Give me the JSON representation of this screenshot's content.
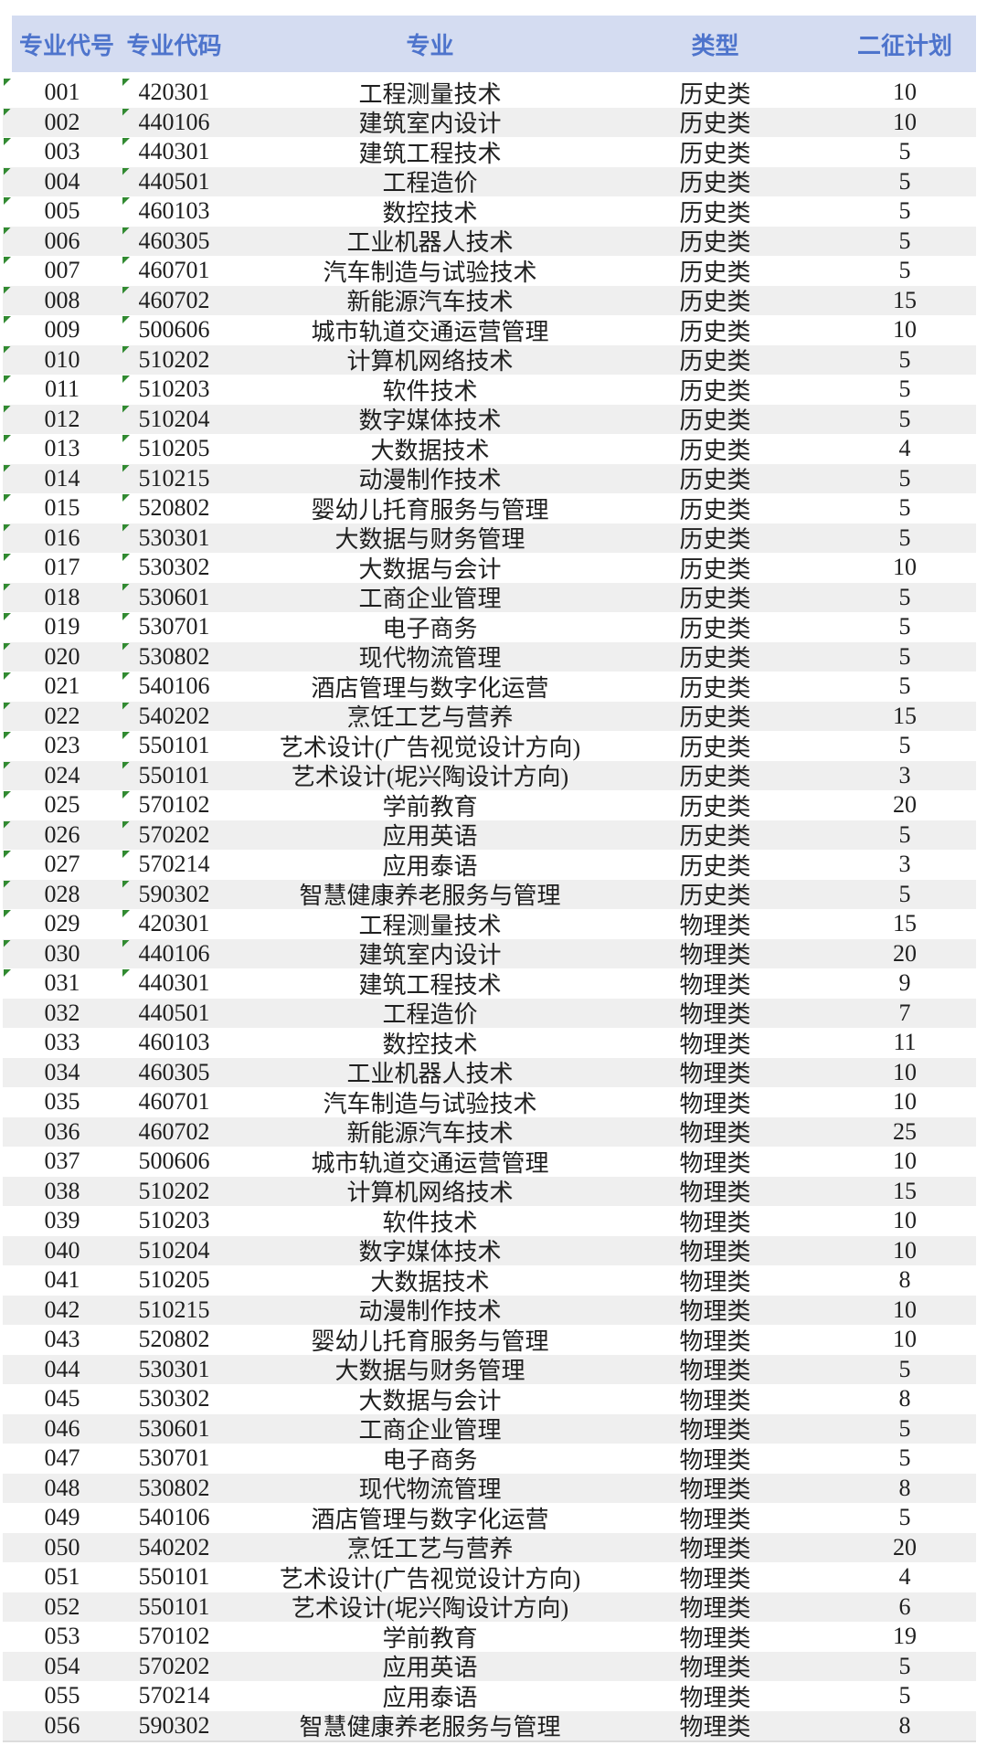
{
  "table": {
    "headers": [
      "专业代号",
      "专业代码",
      "专业",
      "类型",
      "二征计划"
    ],
    "header_bg": "#d4dcf1",
    "header_text_color": "#4e74cc",
    "zebra_row_color": "#efefef",
    "error_indicator_color": "#318a31",
    "rows": [
      {
        "code": "001",
        "major_code": "420301",
        "major": "工程测量技术",
        "type": "历史类",
        "plan": "10",
        "flagged": true
      },
      {
        "code": "002",
        "major_code": "440106",
        "major": "建筑室内设计",
        "type": "历史类",
        "plan": "10",
        "flagged": true
      },
      {
        "code": "003",
        "major_code": "440301",
        "major": "建筑工程技术",
        "type": "历史类",
        "plan": "5",
        "flagged": true
      },
      {
        "code": "004",
        "major_code": "440501",
        "major": "工程造价",
        "type": "历史类",
        "plan": "5",
        "flagged": true
      },
      {
        "code": "005",
        "major_code": "460103",
        "major": "数控技术",
        "type": "历史类",
        "plan": "5",
        "flagged": true
      },
      {
        "code": "006",
        "major_code": "460305",
        "major": "工业机器人技术",
        "type": "历史类",
        "plan": "5",
        "flagged": true
      },
      {
        "code": "007",
        "major_code": "460701",
        "major": "汽车制造与试验技术",
        "type": "历史类",
        "plan": "5",
        "flagged": true
      },
      {
        "code": "008",
        "major_code": "460702",
        "major": "新能源汽车技术",
        "type": "历史类",
        "plan": "15",
        "flagged": true
      },
      {
        "code": "009",
        "major_code": "500606",
        "major": "城市轨道交通运营管理",
        "type": "历史类",
        "plan": "10",
        "flagged": true
      },
      {
        "code": "010",
        "major_code": "510202",
        "major": "计算机网络技术",
        "type": "历史类",
        "plan": "5",
        "flagged": true
      },
      {
        "code": "011",
        "major_code": "510203",
        "major": "软件技术",
        "type": "历史类",
        "plan": "5",
        "flagged": true
      },
      {
        "code": "012",
        "major_code": "510204",
        "major": "数字媒体技术",
        "type": "历史类",
        "plan": "5",
        "flagged": true
      },
      {
        "code": "013",
        "major_code": "510205",
        "major": "大数据技术",
        "type": "历史类",
        "plan": "4",
        "flagged": true
      },
      {
        "code": "014",
        "major_code": "510215",
        "major": "动漫制作技术",
        "type": "历史类",
        "plan": "5",
        "flagged": true
      },
      {
        "code": "015",
        "major_code": "520802",
        "major": "婴幼儿托育服务与管理",
        "type": "历史类",
        "plan": "5",
        "flagged": true
      },
      {
        "code": "016",
        "major_code": "530301",
        "major": "大数据与财务管理",
        "type": "历史类",
        "plan": "5",
        "flagged": true
      },
      {
        "code": "017",
        "major_code": "530302",
        "major": "大数据与会计",
        "type": "历史类",
        "plan": "10",
        "flagged": true
      },
      {
        "code": "018",
        "major_code": "530601",
        "major": "工商企业管理",
        "type": "历史类",
        "plan": "5",
        "flagged": true
      },
      {
        "code": "019",
        "major_code": "530701",
        "major": "电子商务",
        "type": "历史类",
        "plan": "5",
        "flagged": true
      },
      {
        "code": "020",
        "major_code": "530802",
        "major": "现代物流管理",
        "type": "历史类",
        "plan": "5",
        "flagged": true
      },
      {
        "code": "021",
        "major_code": "540106",
        "major": "酒店管理与数字化运营",
        "type": "历史类",
        "plan": "5",
        "flagged": true
      },
      {
        "code": "022",
        "major_code": "540202",
        "major": "烹饪工艺与营养",
        "type": "历史类",
        "plan": "15",
        "flagged": true
      },
      {
        "code": "023",
        "major_code": "550101",
        "major": "艺术设计(广告视觉设计方向)",
        "type": "历史类",
        "plan": "5",
        "flagged": true
      },
      {
        "code": "024",
        "major_code": "550101",
        "major": "艺术设计(坭兴陶设计方向)",
        "type": "历史类",
        "plan": "3",
        "flagged": true
      },
      {
        "code": "025",
        "major_code": "570102",
        "major": "学前教育",
        "type": "历史类",
        "plan": "20",
        "flagged": true
      },
      {
        "code": "026",
        "major_code": "570202",
        "major": "应用英语",
        "type": "历史类",
        "plan": "5",
        "flagged": true
      },
      {
        "code": "027",
        "major_code": "570214",
        "major": "应用泰语",
        "type": "历史类",
        "plan": "3",
        "flagged": true
      },
      {
        "code": "028",
        "major_code": "590302",
        "major": "智慧健康养老服务与管理",
        "type": "历史类",
        "plan": "5",
        "flagged": true
      },
      {
        "code": "029",
        "major_code": "420301",
        "major": "工程测量技术",
        "type": "物理类",
        "plan": "15",
        "flagged": true
      },
      {
        "code": "030",
        "major_code": "440106",
        "major": "建筑室内设计",
        "type": "物理类",
        "plan": "20",
        "flagged": true
      },
      {
        "code": "031",
        "major_code": "440301",
        "major": "建筑工程技术",
        "type": "物理类",
        "plan": "9",
        "flagged": true
      },
      {
        "code": "032",
        "major_code": "440501",
        "major": "工程造价",
        "type": "物理类",
        "plan": "7",
        "flagged": false
      },
      {
        "code": "033",
        "major_code": "460103",
        "major": "数控技术",
        "type": "物理类",
        "plan": "11",
        "flagged": false
      },
      {
        "code": "034",
        "major_code": "460305",
        "major": "工业机器人技术",
        "type": "物理类",
        "plan": "10",
        "flagged": false
      },
      {
        "code": "035",
        "major_code": "460701",
        "major": "汽车制造与试验技术",
        "type": "物理类",
        "plan": "10",
        "flagged": false
      },
      {
        "code": "036",
        "major_code": "460702",
        "major": "新能源汽车技术",
        "type": "物理类",
        "plan": "25",
        "flagged": false
      },
      {
        "code": "037",
        "major_code": "500606",
        "major": "城市轨道交通运营管理",
        "type": "物理类",
        "plan": "10",
        "flagged": false
      },
      {
        "code": "038",
        "major_code": "510202",
        "major": "计算机网络技术",
        "type": "物理类",
        "plan": "15",
        "flagged": false
      },
      {
        "code": "039",
        "major_code": "510203",
        "major": "软件技术",
        "type": "物理类",
        "plan": "10",
        "flagged": false
      },
      {
        "code": "040",
        "major_code": "510204",
        "major": "数字媒体技术",
        "type": "物理类",
        "plan": "10",
        "flagged": false
      },
      {
        "code": "041",
        "major_code": "510205",
        "major": "大数据技术",
        "type": "物理类",
        "plan": "8",
        "flagged": false
      },
      {
        "code": "042",
        "major_code": "510215",
        "major": "动漫制作技术",
        "type": "物理类",
        "plan": "10",
        "flagged": false
      },
      {
        "code": "043",
        "major_code": "520802",
        "major": "婴幼儿托育服务与管理",
        "type": "物理类",
        "plan": "10",
        "flagged": false
      },
      {
        "code": "044",
        "major_code": "530301",
        "major": "大数据与财务管理",
        "type": "物理类",
        "plan": "5",
        "flagged": false
      },
      {
        "code": "045",
        "major_code": "530302",
        "major": "大数据与会计",
        "type": "物理类",
        "plan": "8",
        "flagged": false
      },
      {
        "code": "046",
        "major_code": "530601",
        "major": "工商企业管理",
        "type": "物理类",
        "plan": "5",
        "flagged": false
      },
      {
        "code": "047",
        "major_code": "530701",
        "major": "电子商务",
        "type": "物理类",
        "plan": "5",
        "flagged": false
      },
      {
        "code": "048",
        "major_code": "530802",
        "major": "现代物流管理",
        "type": "物理类",
        "plan": "8",
        "flagged": false
      },
      {
        "code": "049",
        "major_code": "540106",
        "major": "酒店管理与数字化运营",
        "type": "物理类",
        "plan": "5",
        "flagged": false
      },
      {
        "code": "050",
        "major_code": "540202",
        "major": "烹饪工艺与营养",
        "type": "物理类",
        "plan": "20",
        "flagged": false
      },
      {
        "code": "051",
        "major_code": "550101",
        "major": "艺术设计(广告视觉设计方向)",
        "type": "物理类",
        "plan": "4",
        "flagged": false
      },
      {
        "code": "052",
        "major_code": "550101",
        "major": "艺术设计(坭兴陶设计方向)",
        "type": "物理类",
        "plan": "6",
        "flagged": false
      },
      {
        "code": "053",
        "major_code": "570102",
        "major": "学前教育",
        "type": "物理类",
        "plan": "19",
        "flagged": false
      },
      {
        "code": "054",
        "major_code": "570202",
        "major": "应用英语",
        "type": "物理类",
        "plan": "5",
        "flagged": false
      },
      {
        "code": "055",
        "major_code": "570214",
        "major": "应用泰语",
        "type": "物理类",
        "plan": "5",
        "flagged": false
      },
      {
        "code": "056",
        "major_code": "590302",
        "major": "智慧健康养老服务与管理",
        "type": "物理类",
        "plan": "8",
        "flagged": false
      }
    ]
  }
}
